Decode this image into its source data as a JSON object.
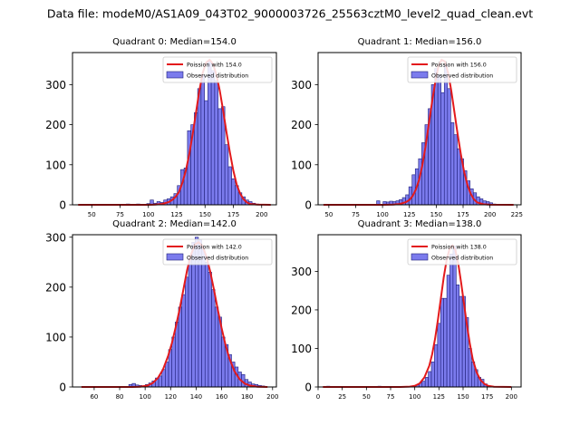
{
  "figure_title": "Data file: modeM0/AS1A09_043T02_9000003726_25563cztM0_level2_quad_clean.evt",
  "colors": {
    "bar_fill": "#7b7bed",
    "bar_edge": "#1f1f7a",
    "poisson_line": "#e31a1c",
    "background": "#ffffff"
  },
  "chart_data": [
    {
      "type": "bar",
      "title": "Quadrant 0: Median=154.0",
      "legend": [
        "Poission with 154.0",
        "Observed distribution"
      ],
      "legend_position": "top-right",
      "xlim": [
        33,
        213
      ],
      "ylim": [
        0,
        380
      ],
      "xticks": [
        50,
        75,
        100,
        125,
        150,
        175,
        200
      ],
      "yticks": [
        0,
        100,
        200,
        300
      ],
      "bin_width": 3,
      "histogram": {
        "x": [
          82,
          85,
          91,
          100,
          103,
          106,
          109,
          112,
          115,
          118,
          121,
          124,
          127,
          130,
          133,
          136,
          139,
          142,
          145,
          148,
          151,
          154,
          157,
          160,
          163,
          166,
          169,
          172,
          175,
          178,
          181,
          184,
          187,
          190,
          193,
          196,
          199
        ],
        "values": [
          2,
          1,
          2,
          3,
          12,
          4,
          8,
          6,
          12,
          15,
          20,
          28,
          48,
          88,
          92,
          185,
          200,
          230,
          290,
          325,
          260,
          360,
          335,
          310,
          240,
          245,
          150,
          95,
          65,
          48,
          30,
          20,
          12,
          8,
          4,
          2,
          1
        ]
      },
      "poisson": {
        "x": [
          38,
          100,
          106,
          112,
          118,
          121,
          124,
          127,
          130,
          133,
          136,
          139,
          142,
          145,
          148,
          151,
          154,
          157,
          160,
          163,
          166,
          169,
          172,
          175,
          178,
          181,
          184,
          187,
          190,
          196,
          208
        ],
        "y": [
          0,
          0,
          0.5,
          2,
          7,
          12,
          20,
          32,
          55,
          85,
          125,
          175,
          230,
          285,
          330,
          355,
          362,
          352,
          325,
          285,
          235,
          180,
          130,
          85,
          50,
          28,
          14,
          6,
          2,
          0.5,
          0
        ]
      }
    },
    {
      "type": "bar",
      "title": "Quadrant 1: Median=156.0",
      "legend": [
        "Poission with 156.0",
        "Observed distribution"
      ],
      "legend_position": "top-right",
      "xlim": [
        40,
        229
      ],
      "ylim": [
        0,
        380
      ],
      "xticks": [
        50,
        75,
        100,
        125,
        150,
        175,
        200,
        225
      ],
      "yticks": [
        0,
        100,
        200,
        300
      ],
      "bin_width": 3,
      "histogram": {
        "x": [
          96,
          102,
          105,
          108,
          111,
          114,
          117,
          120,
          123,
          126,
          129,
          132,
          135,
          138,
          141,
          144,
          147,
          150,
          153,
          156,
          159,
          162,
          165,
          168,
          171,
          174,
          177,
          180,
          183,
          186,
          189,
          192,
          195,
          198,
          201,
          204
        ],
        "values": [
          10,
          8,
          7,
          9,
          8,
          10,
          13,
          18,
          25,
          45,
          75,
          90,
          115,
          155,
          200,
          240,
          300,
          340,
          325,
          280,
          350,
          290,
          205,
          175,
          140,
          115,
          85,
          60,
          40,
          30,
          20,
          15,
          10,
          8,
          5,
          2
        ]
      },
      "poisson": {
        "x": [
          45,
          100,
          110,
          116,
          122,
          125,
          128,
          131,
          134,
          137,
          140,
          143,
          146,
          149,
          152,
          155,
          158,
          161,
          164,
          167,
          170,
          173,
          176,
          179,
          182,
          185,
          188,
          194,
          200,
          222
        ],
        "y": [
          0,
          0,
          0.5,
          2,
          7,
          12,
          22,
          38,
          62,
          98,
          145,
          200,
          255,
          305,
          345,
          362,
          358,
          330,
          285,
          230,
          175,
          125,
          82,
          50,
          28,
          14,
          6,
          1.5,
          0.3,
          0
        ]
      }
    },
    {
      "type": "bar",
      "title": "Quadrant 2: Median=142.0",
      "legend": [
        "Poission with 142.0",
        "Observed distribution"
      ],
      "legend_position": "top-right",
      "xlim": [
        43,
        203
      ],
      "ylim": [
        0,
        305
      ],
      "xticks": [
        60,
        80,
        100,
        120,
        140,
        160,
        180,
        200
      ],
      "yticks": [
        0,
        100,
        200,
        300
      ],
      "bin_width": 2.6,
      "histogram": {
        "x": [
          88.5,
          91.1,
          93.7,
          96.3,
          98.9,
          101.5,
          104.1,
          106.7,
          109.3,
          111.9,
          114.5,
          117.1,
          119.7,
          122.3,
          124.9,
          127.5,
          130.1,
          132.7,
          135.3,
          137.9,
          140.5,
          143.1,
          145.7,
          148.3,
          150.9,
          153.5,
          156.1,
          158.7,
          161.3,
          163.9,
          166.5,
          169.1,
          171.7,
          174.3,
          176.9,
          179.5,
          182.1,
          184.7,
          187.3,
          189.9,
          192.5
        ],
        "values": [
          5,
          7,
          4,
          3,
          2,
          5,
          8,
          12,
          18,
          22,
          35,
          50,
          75,
          100,
          130,
          160,
          185,
          220,
          260,
          290,
          300,
          295,
          275,
          250,
          230,
          195,
          160,
          140,
          100,
          85,
          65,
          50,
          40,
          30,
          25,
          15,
          10,
          6,
          5,
          3,
          2
        ]
      },
      "poisson": {
        "x": [
          50,
          90,
          96,
          102,
          106,
          110,
          114,
          118,
          121,
          124,
          127,
          130,
          133,
          136,
          139,
          142,
          145,
          148,
          151,
          154,
          157,
          160,
          163,
          166,
          170,
          174,
          178,
          182,
          188,
          196
        ],
        "y": [
          0,
          0,
          0.5,
          3,
          8,
          18,
          35,
          62,
          88,
          120,
          155,
          195,
          235,
          265,
          285,
          290,
          282,
          262,
          232,
          195,
          155,
          118,
          85,
          58,
          32,
          16,
          7,
          3,
          0.5,
          0
        ]
      }
    },
    {
      "type": "bar",
      "title": "Quadrant 3: Median=138.0",
      "legend": [
        "Poission with 138.0",
        "Observed distribution"
      ],
      "legend_position": "top-right",
      "xlim": [
        0,
        210
      ],
      "ylim": [
        0,
        395
      ],
      "xticks": [
        0,
        25,
        50,
        75,
        100,
        125,
        150,
        175,
        200
      ],
      "yticks": [
        0,
        100,
        200,
        300
      ],
      "bin_width": 3.2,
      "histogram": {
        "x": [
          10.5,
          54.7,
          63.5,
          72.3,
          87.6,
          96.4,
          99.6,
          102.8,
          106.0,
          109.2,
          112.4,
          115.6,
          118.8,
          122.0,
          125.2,
          128.4,
          131.6,
          134.8,
          138.0,
          141.2,
          144.4,
          147.6,
          150.8,
          154.0,
          157.2,
          160.4,
          163.6,
          166.8,
          170.0,
          173.2,
          176.4
        ],
        "values": [
          2,
          1,
          2,
          1,
          1,
          2,
          3,
          5,
          10,
          15,
          25,
          40,
          65,
          110,
          165,
          230,
          230,
          290,
          345,
          365,
          265,
          235,
          235,
          180,
          100,
          65,
          45,
          25,
          20,
          8,
          3
        ]
      },
      "poisson": {
        "x": [
          5,
          85,
          95,
          100,
          105,
          110,
          115,
          118,
          121,
          124,
          127,
          130,
          133,
          136,
          139,
          142,
          145,
          148,
          151,
          154,
          157,
          160,
          164,
          168,
          172,
          176,
          182,
          200
        ],
        "y": [
          0,
          0,
          1,
          3,
          9,
          25,
          55,
          85,
          125,
          175,
          230,
          285,
          330,
          358,
          368,
          355,
          320,
          270,
          215,
          160,
          112,
          72,
          38,
          18,
          8,
          3,
          0.5,
          0
        ]
      }
    }
  ]
}
